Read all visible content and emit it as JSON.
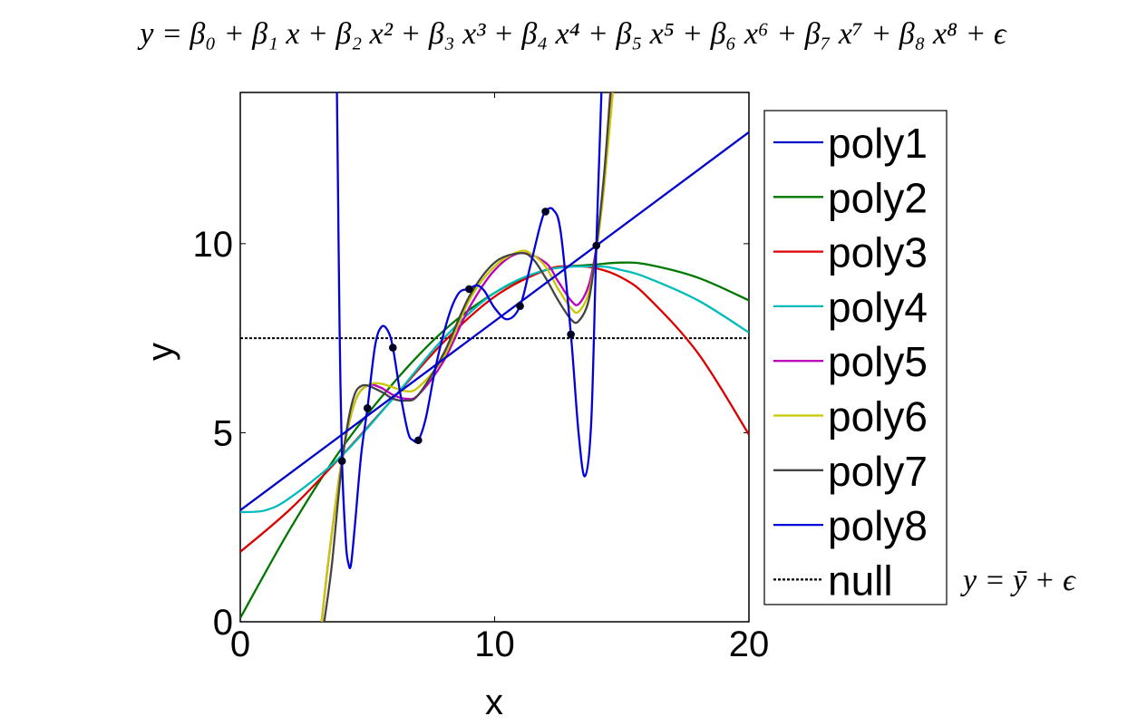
{
  "chart_data": {
    "type": "line",
    "equation": "y = β₀ + β₁ x + β₂ x² + β₃ x³ + β₄ x⁴ + β₅ x⁵ + β₆ x⁶ + β₇ x⁷ + β₈ x⁸ + ϵ",
    "null_equation": "y = ȳ + ϵ",
    "xlabel": "x",
    "ylabel": "y",
    "xlim": [
      0,
      20
    ],
    "ylim": [
      0,
      14
    ],
    "xticks": [
      0,
      10,
      20
    ],
    "yticks": [
      0,
      5,
      10
    ],
    "grid": false,
    "legend_position": "outside-right",
    "points": [
      {
        "x": 4,
        "y": 4.25
      },
      {
        "x": 5,
        "y": 5.65
      },
      {
        "x": 6,
        "y": 7.25
      },
      {
        "x": 7,
        "y": 4.8
      },
      {
        "x": 9,
        "y": 8.8
      },
      {
        "x": 11,
        "y": 8.35
      },
      {
        "x": 12,
        "y": 10.85
      },
      {
        "x": 13,
        "y": 7.6
      },
      {
        "x": 14,
        "y": 9.95
      }
    ],
    "series": [
      {
        "name": "poly1",
        "color": "#0000cc",
        "points": [
          [
            0,
            2.95
          ],
          [
            20,
            12.95
          ]
        ]
      },
      {
        "name": "poly2",
        "color": "#007700",
        "points": [
          [
            0,
            0.1
          ],
          [
            2,
            2.5
          ],
          [
            4,
            4.6
          ],
          [
            6,
            6.3
          ],
          [
            8,
            7.7
          ],
          [
            10,
            8.7
          ],
          [
            12,
            9.3
          ],
          [
            14,
            9.45
          ],
          [
            15,
            9.5
          ],
          [
            16,
            9.45
          ],
          [
            18,
            9.1
          ],
          [
            20,
            8.5
          ]
        ]
      },
      {
        "name": "poly3",
        "color": "#dd0000",
        "points": [
          [
            0,
            1.85
          ],
          [
            2,
            3.0
          ],
          [
            4,
            4.4
          ],
          [
            6,
            5.9
          ],
          [
            8,
            7.4
          ],
          [
            10,
            8.6
          ],
          [
            12,
            9.3
          ],
          [
            13,
            9.4
          ],
          [
            14,
            9.35
          ],
          [
            15,
            9.1
          ],
          [
            16,
            8.6
          ],
          [
            18,
            7.1
          ],
          [
            20,
            4.95
          ]
        ]
      },
      {
        "name": "poly4",
        "color": "#00bbbb",
        "points": [
          [
            0,
            2.9
          ],
          [
            1,
            2.95
          ],
          [
            2,
            3.3
          ],
          [
            4,
            4.4
          ],
          [
            6,
            5.9
          ],
          [
            8,
            7.5
          ],
          [
            10,
            8.7
          ],
          [
            12,
            9.3
          ],
          [
            14,
            9.4
          ],
          [
            15,
            9.3
          ],
          [
            16,
            9.1
          ],
          [
            18,
            8.5
          ],
          [
            20,
            7.65
          ]
        ]
      },
      {
        "name": "poly5",
        "color": "#bb00bb",
        "points": [
          [
            3.2,
            0
          ],
          [
            3.5,
            1.8
          ],
          [
            4,
            4.3
          ],
          [
            4.5,
            5.8
          ],
          [
            5,
            6.25
          ],
          [
            5.5,
            6.2
          ],
          [
            6,
            6.0
          ],
          [
            6.5,
            5.9
          ],
          [
            7,
            6.0
          ],
          [
            8,
            6.9
          ],
          [
            9,
            8.3
          ],
          [
            10,
            9.3
          ],
          [
            11,
            9.75
          ],
          [
            12,
            9.5
          ],
          [
            12.5,
            9.0
          ],
          [
            13,
            8.5
          ],
          [
            13.3,
            8.4
          ],
          [
            13.7,
            8.9
          ],
          [
            14,
            9.9
          ],
          [
            14.3,
            11.5
          ],
          [
            14.6,
            14
          ]
        ]
      },
      {
        "name": "poly6",
        "color": "#c8c800",
        "points": [
          [
            3.2,
            0
          ],
          [
            3.5,
            1.8
          ],
          [
            4,
            4.3
          ],
          [
            4.5,
            5.8
          ],
          [
            5,
            6.25
          ],
          [
            5.5,
            6.3
          ],
          [
            6,
            6.2
          ],
          [
            6.5,
            6.1
          ],
          [
            7,
            6.2
          ],
          [
            8,
            7.0
          ],
          [
            9,
            8.5
          ],
          [
            10,
            9.4
          ],
          [
            11,
            9.8
          ],
          [
            11.5,
            9.7
          ],
          [
            12,
            9.4
          ],
          [
            12.5,
            8.8
          ],
          [
            13,
            8.3
          ],
          [
            13.3,
            8.2
          ],
          [
            13.7,
            8.7
          ],
          [
            14,
            9.8
          ],
          [
            14.3,
            11.5
          ],
          [
            14.65,
            14
          ]
        ]
      },
      {
        "name": "poly7",
        "color": "#444444",
        "points": [
          [
            3.3,
            0
          ],
          [
            3.6,
            1.5
          ],
          [
            4,
            4.2
          ],
          [
            4.4,
            5.8
          ],
          [
            4.8,
            6.25
          ],
          [
            5.5,
            6.1
          ],
          [
            6,
            5.9
          ],
          [
            6.5,
            5.85
          ],
          [
            7,
            6.0
          ],
          [
            8,
            7.1
          ],
          [
            9,
            8.6
          ],
          [
            10,
            9.5
          ],
          [
            11,
            9.75
          ],
          [
            11.5,
            9.6
          ],
          [
            12,
            9.1
          ],
          [
            12.5,
            8.5
          ],
          [
            13,
            8.0
          ],
          [
            13.3,
            7.95
          ],
          [
            13.7,
            8.5
          ],
          [
            14,
            9.9
          ],
          [
            14.3,
            11.8
          ],
          [
            14.55,
            14
          ]
        ]
      },
      {
        "name": "poly8",
        "color": "#0000dd",
        "points": [
          [
            3.8,
            14
          ],
          [
            3.85,
            11
          ],
          [
            3.9,
            8
          ],
          [
            4,
            4.25
          ],
          [
            4.15,
            2.1
          ],
          [
            4.25,
            1.55
          ],
          [
            4.35,
            1.5
          ],
          [
            4.5,
            2.5
          ],
          [
            4.75,
            4.4
          ],
          [
            5,
            5.65
          ],
          [
            5.3,
            7.3
          ],
          [
            5.55,
            7.8
          ],
          [
            5.8,
            7.7
          ],
          [
            6,
            7.25
          ],
          [
            6.3,
            6.0
          ],
          [
            6.6,
            5.0
          ],
          [
            6.8,
            4.8
          ],
          [
            7,
            4.8
          ],
          [
            7.3,
            5.4
          ],
          [
            7.7,
            6.8
          ],
          [
            8.2,
            8.1
          ],
          [
            8.6,
            8.7
          ],
          [
            9,
            8.8
          ],
          [
            9.3,
            8.9
          ],
          [
            9.6,
            8.75
          ],
          [
            10,
            8.3
          ],
          [
            10.5,
            8.0
          ],
          [
            11,
            8.35
          ],
          [
            11.4,
            9.4
          ],
          [
            11.8,
            10.5
          ],
          [
            12,
            10.85
          ],
          [
            12.3,
            10.9
          ],
          [
            12.6,
            10.3
          ],
          [
            13,
            7.6
          ],
          [
            13.3,
            5.0
          ],
          [
            13.55,
            3.85
          ],
          [
            13.8,
            5.3
          ],
          [
            14,
            9.95
          ],
          [
            14.2,
            14
          ]
        ]
      }
    ],
    "null_line": {
      "name": "null",
      "color": "#000000",
      "y": 7.5
    }
  }
}
